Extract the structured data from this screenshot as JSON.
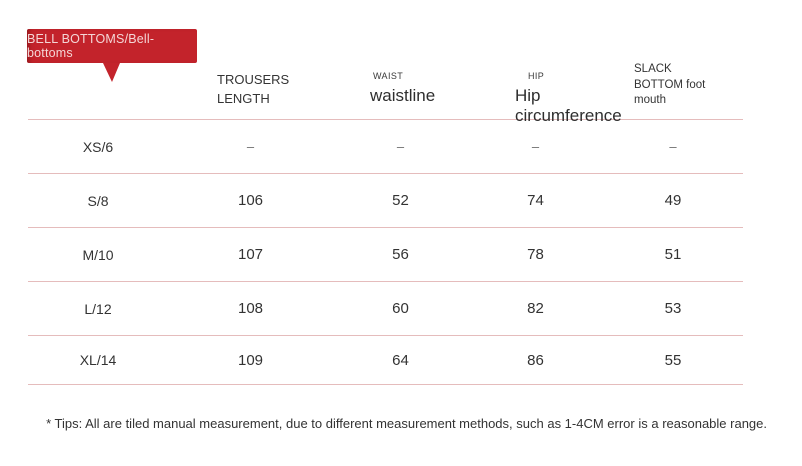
{
  "badge": {
    "label": "BELL BOTTOMS/Bell-bottoms"
  },
  "table": {
    "header": {
      "trousers": {
        "lines": [
          "TROUSERS",
          "LENGTH"
        ]
      },
      "waist": {
        "small": "WAIST",
        "main": "waistline"
      },
      "hip": {
        "small": "HIP",
        "main": "Hip circumference"
      },
      "slack": {
        "lines": [
          "SLACK",
          "BOTTOM foot",
          "mouth"
        ]
      }
    },
    "rows": [
      {
        "size": "XS/6",
        "values": [
          "–",
          "–",
          "–",
          "–"
        ]
      },
      {
        "size": "S/8",
        "values": [
          "106",
          "52",
          "74",
          "49"
        ]
      },
      {
        "size": "M/10",
        "values": [
          "107",
          "56",
          "78",
          "51"
        ]
      },
      {
        "size": "L/12",
        "values": [
          "108",
          "60",
          "82",
          "53"
        ]
      },
      {
        "size": "XL/14",
        "values": [
          "109",
          "64",
          "86",
          "55"
        ]
      }
    ]
  },
  "footer": {
    "tips": "* Tips: All are tiled manual measurement, due to different measurement methods, such as 1-4CM error is a reasonable range."
  },
  "colors": {
    "accent": "#c3232b",
    "badge_text": "#f4d6d6",
    "line": "#e5bcbc",
    "text": "#333333",
    "dash": "#6b6b6b",
    "bg": "#ffffff"
  }
}
